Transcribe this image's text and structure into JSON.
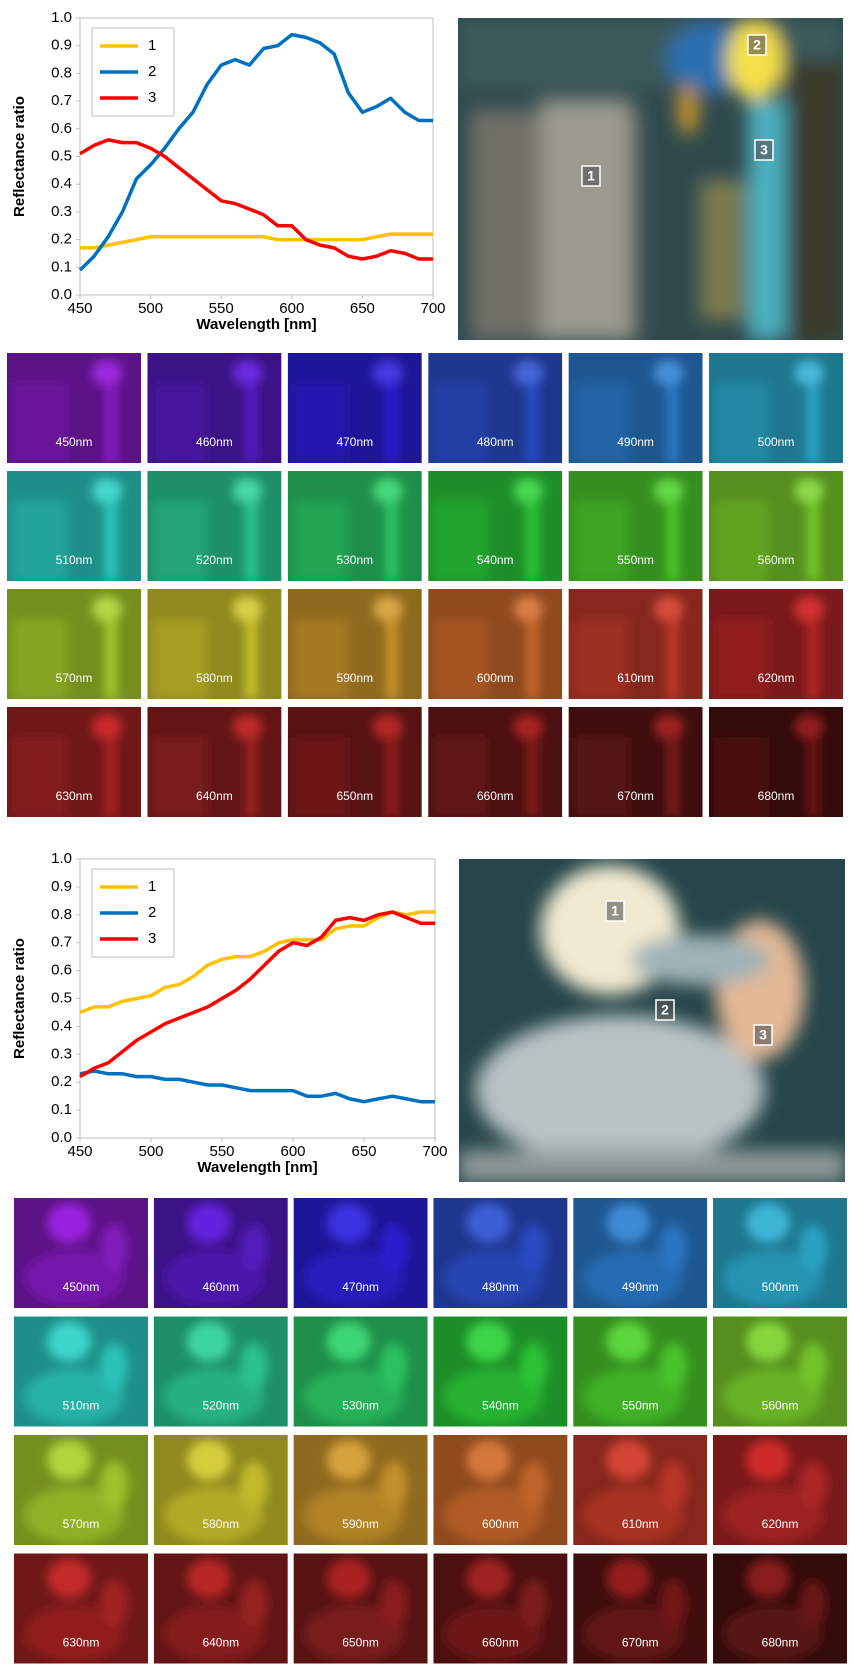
{
  "chart_data": [
    {
      "type": "line",
      "ylabel": "Reflectance ratio",
      "xlabel": "Wavelength [nm]",
      "x": [
        450,
        460,
        470,
        480,
        490,
        500,
        510,
        520,
        530,
        540,
        550,
        560,
        570,
        580,
        590,
        600,
        610,
        620,
        630,
        640,
        650,
        660,
        670,
        680,
        690,
        700
      ],
      "series": [
        {
          "name": "1",
          "color": "#ffc000",
          "values": [
            0.17,
            0.17,
            0.18,
            0.19,
            0.2,
            0.21,
            0.21,
            0.21,
            0.21,
            0.21,
            0.21,
            0.21,
            0.21,
            0.21,
            0.2,
            0.2,
            0.2,
            0.2,
            0.2,
            0.2,
            0.2,
            0.21,
            0.22,
            0.22,
            0.22,
            0.22
          ]
        },
        {
          "name": "2",
          "color": "#0070c0",
          "values": [
            0.09,
            0.14,
            0.21,
            0.3,
            0.42,
            0.47,
            0.53,
            0.6,
            0.66,
            0.76,
            0.83,
            0.85,
            0.83,
            0.89,
            0.9,
            0.94,
            0.93,
            0.91,
            0.87,
            0.73,
            0.66,
            0.68,
            0.71,
            0.66,
            0.63,
            0.63
          ]
        },
        {
          "name": "3",
          "color": "#ff0000",
          "values": [
            0.51,
            0.54,
            0.56,
            0.55,
            0.55,
            0.53,
            0.5,
            0.46,
            0.42,
            0.38,
            0.34,
            0.33,
            0.31,
            0.29,
            0.25,
            0.25,
            0.2,
            0.18,
            0.17,
            0.14,
            0.13,
            0.14,
            0.16,
            0.15,
            0.13,
            0.13
          ]
        }
      ],
      "xlim": [
        450,
        700
      ],
      "xticks": [
        450,
        500,
        550,
        600,
        650,
        700
      ],
      "ylim": [
        0,
        1
      ],
      "yticks": [
        {
          "value": 0,
          "label": "0.0"
        },
        0.1,
        0.2,
        0.3,
        0.4,
        0.5,
        0.6,
        0.7,
        0.8,
        0.9,
        {
          "value": 1,
          "label": "1.0"
        }
      ],
      "legend": "upper left",
      "grid": false
    },
    {
      "type": "line",
      "ylabel": "Reflectance ratio",
      "xlabel": "Wavelength [nm]",
      "x": [
        450,
        460,
        470,
        480,
        490,
        500,
        510,
        520,
        530,
        540,
        550,
        560,
        570,
        580,
        590,
        600,
        610,
        620,
        630,
        640,
        650,
        660,
        670,
        680,
        690,
        700
      ],
      "series": [
        {
          "name": "1",
          "color": "#ffc000",
          "values": [
            0.45,
            0.47,
            0.47,
            0.49,
            0.5,
            0.51,
            0.54,
            0.55,
            0.58,
            0.62,
            0.64,
            0.65,
            0.65,
            0.67,
            0.7,
            0.71,
            0.71,
            0.71,
            0.75,
            0.76,
            0.76,
            0.79,
            0.81,
            0.8,
            0.81,
            0.81
          ]
        },
        {
          "name": "2",
          "color": "#0070c0",
          "values": [
            0.23,
            0.24,
            0.23,
            0.23,
            0.22,
            0.22,
            0.21,
            0.21,
            0.2,
            0.19,
            0.19,
            0.18,
            0.17,
            0.17,
            0.17,
            0.17,
            0.15,
            0.15,
            0.16,
            0.14,
            0.13,
            0.14,
            0.15,
            0.14,
            0.13,
            0.13
          ]
        },
        {
          "name": "3",
          "color": "#ff0000",
          "values": [
            0.22,
            0.25,
            0.27,
            0.31,
            0.35,
            0.38,
            0.41,
            0.43,
            0.45,
            0.47,
            0.5,
            0.53,
            0.57,
            0.62,
            0.67,
            0.7,
            0.69,
            0.72,
            0.78,
            0.79,
            0.78,
            0.8,
            0.81,
            0.79,
            0.77,
            0.77
          ]
        }
      ],
      "xlim": [
        450,
        700
      ],
      "xticks": [
        450,
        500,
        550,
        600,
        650,
        700
      ],
      "ylim": [
        0,
        1
      ],
      "yticks": [
        {
          "value": 0,
          "label": "0.0"
        },
        0.1,
        0.2,
        0.3,
        0.4,
        0.5,
        0.6,
        0.7,
        0.8,
        0.9,
        {
          "value": 1,
          "label": "1.0"
        }
      ],
      "legend": "upper left",
      "grid": false
    }
  ],
  "panels": [
    {
      "markers": [
        "1",
        "2",
        "3"
      ],
      "tiles": [
        "450nm",
        "460nm",
        "470nm",
        "480nm",
        "490nm",
        "500nm",
        "510nm",
        "520nm",
        "530nm",
        "540nm",
        "550nm",
        "560nm",
        "570nm",
        "580nm",
        "590nm",
        "600nm",
        "610nm",
        "620nm",
        "630nm",
        "640nm",
        "650nm",
        "660nm",
        "670nm",
        "680nm"
      ]
    },
    {
      "markers": [
        "1",
        "2",
        "3"
      ],
      "tiles": [
        "450nm",
        "460nm",
        "470nm",
        "480nm",
        "490nm",
        "500nm",
        "510nm",
        "520nm",
        "530nm",
        "540nm",
        "550nm",
        "560nm",
        "570nm",
        "580nm",
        "590nm",
        "600nm",
        "610nm",
        "620nm",
        "630nm",
        "640nm",
        "650nm",
        "660nm",
        "670nm",
        "680nm"
      ]
    }
  ]
}
